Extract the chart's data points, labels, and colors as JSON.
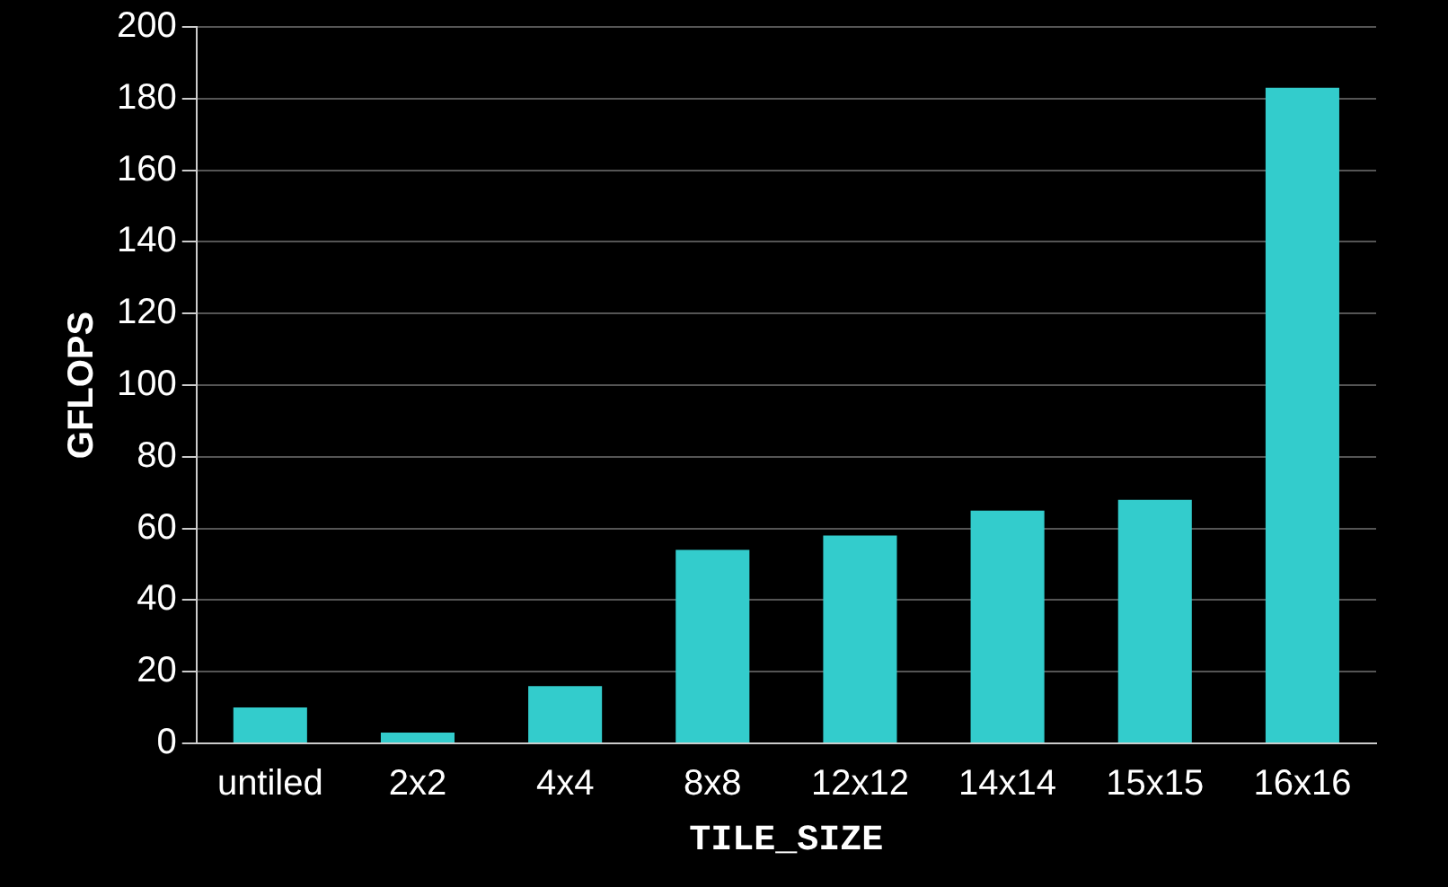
{
  "chart_data": {
    "type": "bar",
    "xlabel": "TILE_SIZE",
    "ylabel": "GFLOPS",
    "categories": [
      "untiled",
      "2x2",
      "4x4",
      "8x8",
      "12x12",
      "14x14",
      "15x15",
      "16x16"
    ],
    "values": [
      10,
      3,
      16,
      54,
      58,
      65,
      68,
      183
    ],
    "color": "#33cccc",
    "ylim": [
      0,
      200
    ],
    "yticks": [
      0,
      20,
      40,
      60,
      80,
      100,
      120,
      140,
      160,
      180,
      200
    ],
    "grid": "y",
    "legend": false
  }
}
